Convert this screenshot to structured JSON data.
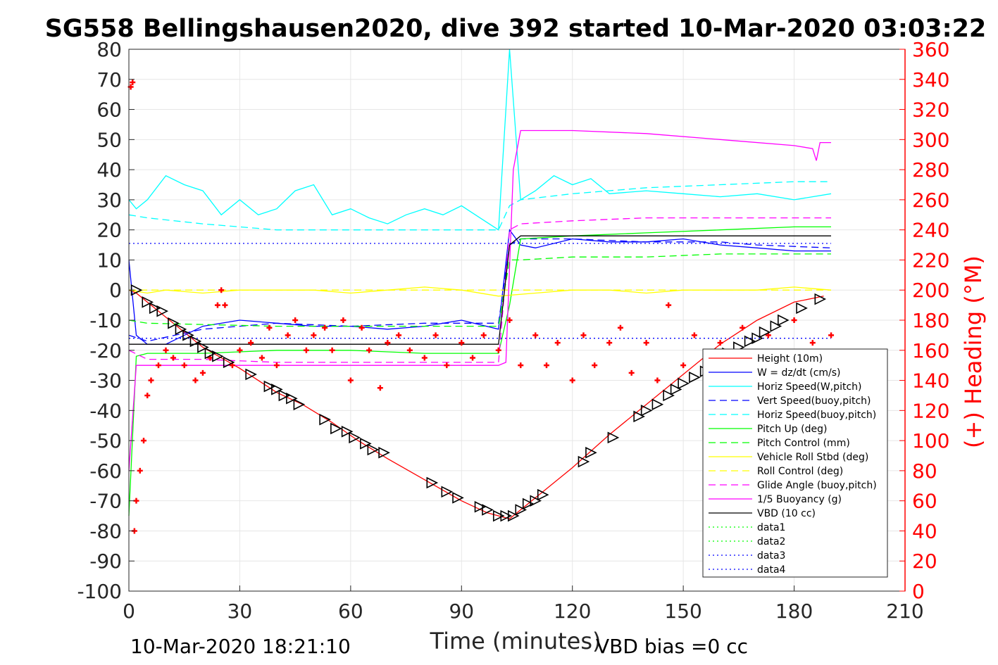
{
  "chart_data": {
    "type": "line",
    "title": "SG558 Bellingshausen2020, dive 392 started 10-Mar-2020 03:03:22",
    "xlabel": "Time (minutes)",
    "ylabel": "",
    "y2label": "(+) Heading (°M)",
    "xlim": [
      0,
      210
    ],
    "ylim": [
      -100,
      80
    ],
    "y2lim": [
      0,
      360
    ],
    "x_ticks": [
      "0",
      "30",
      "60",
      "90",
      "120",
      "150",
      "180",
      "210"
    ],
    "y_ticks": [
      "80",
      "70",
      "60",
      "50",
      "40",
      "30",
      "20",
      "10",
      "0",
      "-10",
      "-20",
      "-30",
      "-40",
      "-50",
      "-60",
      "-70",
      "-80",
      "-90",
      "-100"
    ],
    "y2_ticks": [
      "360",
      "340",
      "320",
      "300",
      "280",
      "260",
      "240",
      "220",
      "200",
      "180",
      "160",
      "140",
      "120",
      "100",
      "80",
      "60",
      "40",
      "20",
      "0"
    ],
    "grid": true,
    "legend_position": "bottom-right",
    "footer_left": "10-Mar-2020 18:21:10",
    "footer_right": "VBD bias =0 cc",
    "colors": {
      "axis_left": "#262626",
      "axis_right": "#ff0000",
      "grid": "#e6e6e6"
    },
    "series": [
      {
        "name": "Height (10m)",
        "color": "#ff0000",
        "style": "solid",
        "x": [
          0,
          2,
          10,
          20,
          30,
          40,
          47,
          55,
          62,
          70,
          80,
          90,
          97,
          103,
          110,
          120,
          130,
          140,
          150,
          160,
          170,
          180,
          188
        ],
        "y": [
          0,
          -1,
          -9,
          -19,
          -26,
          -34,
          -38,
          -44,
          -50,
          -56,
          -63,
          -70,
          -74,
          -76,
          -69,
          -59,
          -48,
          -38,
          -28,
          -18,
          -10,
          -4,
          -2
        ]
      },
      {
        "name": "W = dz/dt (cm/s)",
        "color": "#0000ff",
        "style": "solid",
        "x": [
          0,
          2,
          5,
          10,
          20,
          30,
          40,
          50,
          60,
          70,
          80,
          90,
          100,
          103,
          106,
          110,
          120,
          130,
          140,
          150,
          160,
          170,
          180,
          190
        ],
        "y": [
          10,
          -15,
          -18,
          -18,
          -12,
          -10,
          -11,
          -12,
          -12,
          -13,
          -12,
          -10,
          -13,
          20,
          15,
          14,
          17,
          16,
          16,
          17,
          15,
          14,
          13,
          13
        ]
      },
      {
        "name": "Horiz Speed(W,pitch)",
        "color": "#00ffff",
        "style": "solid",
        "x": [
          0,
          2,
          5,
          10,
          15,
          20,
          25,
          30,
          35,
          40,
          45,
          50,
          55,
          60,
          65,
          70,
          75,
          80,
          85,
          90,
          95,
          100,
          103,
          106,
          110,
          115,
          120,
          125,
          130,
          140,
          150,
          160,
          170,
          180,
          190
        ],
        "y": [
          30,
          27,
          30,
          38,
          35,
          33,
          25,
          30,
          25,
          27,
          33,
          35,
          25,
          27,
          24,
          22,
          25,
          27,
          25,
          28,
          24,
          20,
          80,
          30,
          33,
          38,
          35,
          37,
          32,
          33,
          32,
          31,
          32,
          30,
          32
        ]
      },
      {
        "name": "Vert Speed(buoy,pitch)",
        "color": "#0000ff",
        "style": "dashed",
        "x": [
          0,
          5,
          20,
          40,
          60,
          80,
          100,
          103,
          106,
          120,
          140,
          160,
          170,
          190
        ],
        "y": [
          -15,
          -17,
          -13,
          -11,
          -12,
          -11,
          -11,
          15,
          17,
          17,
          16,
          16,
          15,
          14
        ]
      },
      {
        "name": "Horiz Speed(buoy,pitch)",
        "color": "#00ffff",
        "style": "dashed",
        "x": [
          0,
          5,
          20,
          40,
          60,
          80,
          100,
          103,
          106,
          120,
          140,
          160,
          180,
          190
        ],
        "y": [
          25,
          24,
          22,
          20,
          20,
          20,
          20,
          28,
          30,
          32,
          34,
          35,
          36,
          36
        ]
      },
      {
        "name": "Pitch Up (deg)",
        "color": "#00ff00",
        "style": "solid",
        "x": [
          0,
          2,
          5,
          20,
          40,
          60,
          80,
          100,
          103,
          106,
          120,
          140,
          160,
          180,
          190
        ],
        "y": [
          -75,
          -22,
          -21,
          -21,
          -20,
          -20,
          -21,
          -21,
          -5,
          17,
          18,
          19,
          20,
          21,
          21
        ]
      },
      {
        "name": "Pitch Control (mm)",
        "color": "#00ff00",
        "style": "dashed",
        "x": [
          0,
          5,
          40,
          80,
          100,
          103,
          106,
          120,
          140,
          160,
          190
        ],
        "y": [
          -10,
          -11,
          -12,
          -12,
          -12,
          10,
          10,
          11,
          11,
          12,
          12
        ]
      },
      {
        "name": "Vehicle Roll Stbd (deg)",
        "color": "#ffff00",
        "style": "solid",
        "x": [
          0,
          5,
          10,
          20,
          30,
          40,
          50,
          60,
          70,
          80,
          90,
          100,
          110,
          120,
          130,
          140,
          150,
          160,
          170,
          180,
          190
        ],
        "y": [
          0,
          -1,
          0,
          -1,
          0,
          0,
          0,
          -1,
          0,
          1,
          0,
          -2,
          -1,
          0,
          0,
          -1,
          0,
          0,
          0,
          1,
          0
        ]
      },
      {
        "name": "Roll Control (deg)",
        "color": "#ffff00",
        "style": "dashed",
        "x": [
          0,
          20,
          40,
          60,
          80,
          100,
          120,
          140,
          160,
          180,
          190
        ],
        "y": [
          0,
          0,
          0,
          0,
          0,
          0,
          0,
          0,
          0,
          0,
          0
        ]
      },
      {
        "name": "Glide Angle (buoy,pitch)",
        "color": "#ff00ff",
        "style": "dashed",
        "x": [
          0,
          5,
          20,
          40,
          60,
          80,
          100,
          103,
          106,
          120,
          140,
          160,
          180,
          190
        ],
        "y": [
          -20,
          -23,
          -23,
          -24,
          -24,
          -24,
          -24,
          20,
          22,
          23,
          24,
          24,
          24,
          24
        ]
      },
      {
        "name": "1/5 Buoyancy (g)",
        "color": "#ff00ff",
        "style": "solid",
        "x": [
          0,
          2,
          100,
          102,
          104,
          106,
          120,
          140,
          160,
          180,
          185,
          186,
          187,
          190
        ],
        "y": [
          -60,
          -25,
          -25,
          -24,
          40,
          53,
          53,
          52,
          50,
          48,
          47,
          43,
          49,
          49
        ]
      },
      {
        "name": "VBD (10 cc)",
        "color": "#000000",
        "style": "solid",
        "x": [
          0,
          2,
          100,
          103,
          106,
          120,
          140,
          160,
          180,
          190
        ],
        "y": [
          -18,
          -18,
          -18,
          15,
          18,
          18,
          18,
          18,
          18,
          18
        ]
      },
      {
        "name": "data1",
        "color": "#00ff00",
        "style": "dotted",
        "x": [],
        "y": []
      },
      {
        "name": "data2",
        "color": "#00ff00",
        "style": "dotted",
        "x": [],
        "y": []
      },
      {
        "name": "data3",
        "color": "#0000ff",
        "style": "dotted",
        "x": [
          0,
          190
        ],
        "y": [
          15.5,
          15.5
        ]
      },
      {
        "name": "data4",
        "color": "#0000ff",
        "style": "dotted",
        "x": [
          0,
          190
        ],
        "y": [
          -16,
          -16
        ]
      }
    ],
    "heading_series": {
      "name": "(+) Heading",
      "axis": "right",
      "color": "#ff0000",
      "x": [
        0.5,
        1,
        1.5,
        2,
        3,
        4,
        5,
        6,
        8,
        10,
        12,
        15,
        18,
        20,
        22,
        24,
        25,
        26,
        28,
        30,
        33,
        36,
        38,
        40,
        43,
        45,
        48,
        50,
        53,
        55,
        58,
        60,
        63,
        65,
        68,
        70,
        73,
        76,
        80,
        83,
        86,
        90,
        93,
        96,
        100,
        103,
        106,
        110,
        113,
        116,
        120,
        123,
        126,
        130,
        133,
        136,
        140,
        143,
        146,
        150,
        153,
        156,
        160,
        163,
        166,
        170,
        173,
        176,
        180,
        185,
        190
      ],
      "y": [
        335,
        338,
        40,
        60,
        80,
        100,
        130,
        140,
        150,
        160,
        155,
        150,
        140,
        145,
        155,
        190,
        200,
        190,
        150,
        160,
        165,
        155,
        175,
        150,
        170,
        180,
        160,
        170,
        175,
        160,
        180,
        140,
        175,
        160,
        135,
        165,
        170,
        160,
        155,
        170,
        150,
        165,
        155,
        170,
        160,
        180,
        150,
        170,
        150,
        165,
        140,
        170,
        150,
        165,
        175,
        145,
        165,
        140,
        190,
        150,
        170,
        140,
        165,
        140,
        175,
        150,
        170,
        150,
        180,
        165,
        170
      ]
    },
    "vbd_markers": {
      "x": [
        2,
        5,
        7,
        9,
        12,
        14,
        16,
        18,
        20,
        22,
        24,
        27,
        33,
        38,
        40,
        42,
        44,
        46,
        53,
        56,
        59,
        61,
        64,
        66,
        69,
        82,
        86,
        89,
        95,
        97,
        100,
        102,
        104,
        106,
        108,
        110,
        112,
        123,
        125,
        131,
        138,
        140,
        143,
        146,
        148,
        150,
        153,
        156,
        158,
        160,
        162,
        165,
        168,
        170,
        172,
        175,
        177,
        182,
        187
      ],
      "y": [
        0,
        -4,
        -6,
        -7,
        -11,
        -13,
        -15,
        -17,
        -19,
        -21,
        -22,
        -24,
        -28,
        -32,
        -33,
        -35,
        -36,
        -38,
        -43,
        -46,
        -47,
        -49,
        -51,
        -53,
        -54,
        -64,
        -67,
        -69,
        -72,
        -73,
        -75,
        -75,
        -75,
        -73,
        -71,
        -70,
        -68,
        -57,
        -54,
        -49,
        -42,
        -40,
        -38,
        -35,
        -33,
        -31,
        -29,
        -27,
        -25,
        -23,
        -21,
        -19,
        -17,
        -16,
        -14,
        -12,
        -10,
        -6,
        -3
      ]
    }
  }
}
